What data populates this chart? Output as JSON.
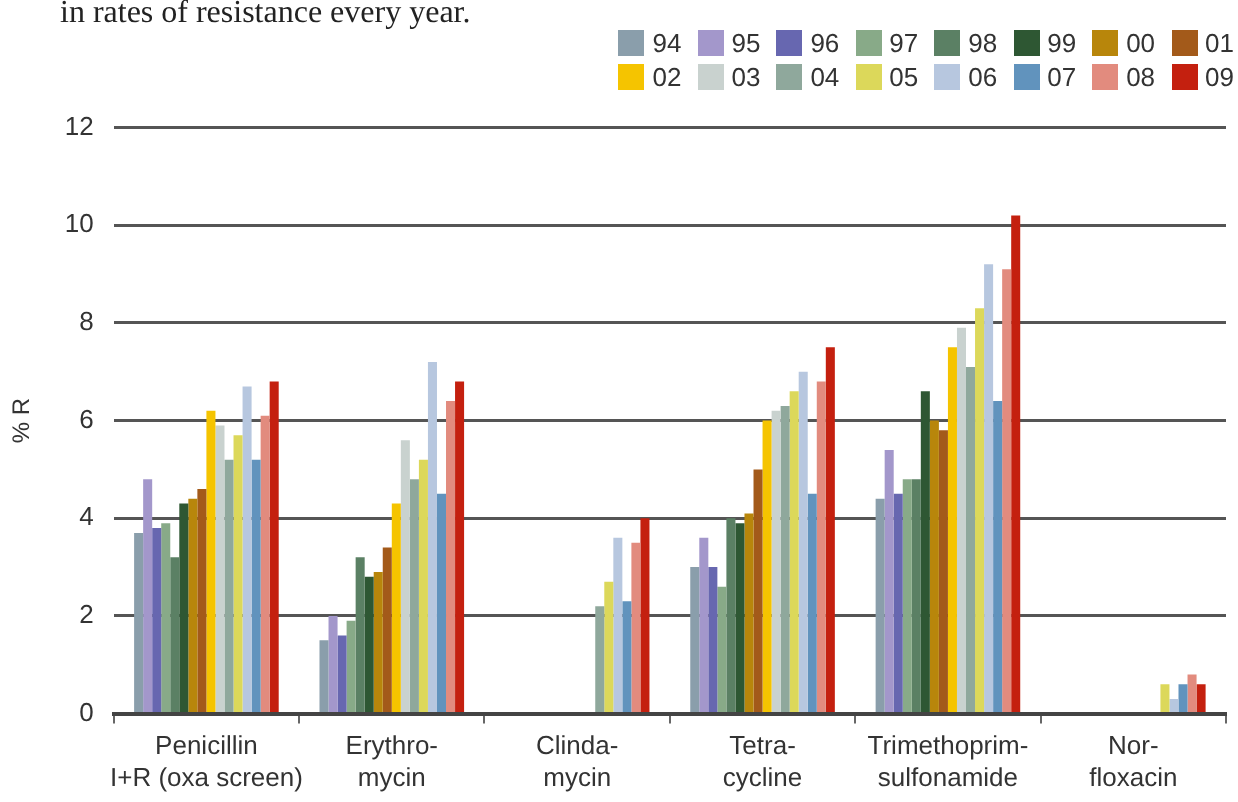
{
  "chart_data": {
    "type": "bar",
    "title": "in rates of resistance every year.",
    "ylabel": "% R",
    "categories": [
      "Penicillin\nI+R (oxa screen)",
      "Erythro-\nmycin",
      "Clinda-\nmycin",
      "Tetra-\ncycline",
      "Trimethoprim-\nsulfonamide",
      "Nor-\nfloxacin"
    ],
    "ylim": [
      0,
      12
    ],
    "yticks": [
      0,
      2,
      4,
      6,
      8,
      10,
      12
    ],
    "grid": "y",
    "legend": "top right",
    "series": [
      {
        "name": "94",
        "color": "#8a9eab",
        "values": [
          3.7,
          1.5,
          null,
          3.0,
          4.4,
          null
        ]
      },
      {
        "name": "95",
        "color": "#a397cb",
        "values": [
          4.8,
          2.0,
          null,
          3.6,
          5.4,
          null
        ]
      },
      {
        "name": "96",
        "color": "#6767b0",
        "values": [
          3.8,
          1.6,
          null,
          3.0,
          4.5,
          null
        ]
      },
      {
        "name": "97",
        "color": "#88aa88",
        "values": [
          3.9,
          1.9,
          null,
          2.6,
          4.8,
          null
        ]
      },
      {
        "name": "98",
        "color": "#5b8064",
        "values": [
          3.2,
          3.2,
          null,
          4.0,
          4.8,
          null
        ]
      },
      {
        "name": "99",
        "color": "#2e5733",
        "values": [
          4.3,
          2.8,
          null,
          3.9,
          6.6,
          null
        ]
      },
      {
        "name": "00",
        "color": "#b8860b",
        "values": [
          4.4,
          2.9,
          null,
          4.1,
          6.0,
          null
        ]
      },
      {
        "name": "01",
        "color": "#a35a1a",
        "values": [
          4.6,
          3.4,
          null,
          5.0,
          5.8,
          null
        ]
      },
      {
        "name": "02",
        "color": "#f5c400",
        "values": [
          6.2,
          4.3,
          null,
          6.0,
          7.5,
          null
        ]
      },
      {
        "name": "03",
        "color": "#c9d2cf",
        "values": [
          5.9,
          5.6,
          null,
          6.2,
          7.9,
          null
        ]
      },
      {
        "name": "04",
        "color": "#8fa89c",
        "values": [
          5.2,
          4.8,
          2.2,
          6.3,
          7.1,
          null
        ]
      },
      {
        "name": "05",
        "color": "#dcd85a",
        "values": [
          5.7,
          5.2,
          2.7,
          6.6,
          8.3,
          0.6
        ]
      },
      {
        "name": "06",
        "color": "#b7c7df",
        "values": [
          6.7,
          7.2,
          3.6,
          7.0,
          9.2,
          0.3
        ]
      },
      {
        "name": "07",
        "color": "#6193bd",
        "values": [
          5.2,
          4.5,
          2.3,
          4.5,
          6.4,
          0.6
        ]
      },
      {
        "name": "08",
        "color": "#e28b7e",
        "values": [
          6.1,
          6.4,
          3.5,
          6.8,
          9.1,
          0.8
        ]
      },
      {
        "name": "09",
        "color": "#c4200f",
        "values": [
          6.8,
          6.8,
          4.0,
          7.5,
          10.2,
          0.6
        ]
      }
    ]
  }
}
